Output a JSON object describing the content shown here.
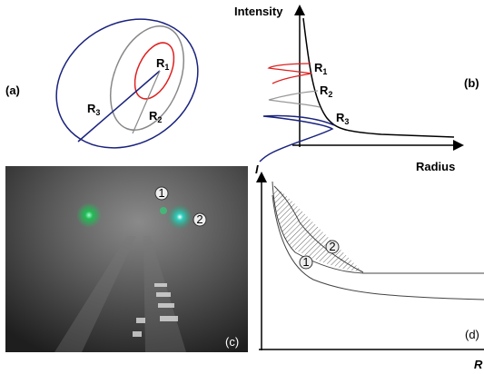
{
  "panel_a": {
    "label": "(a)",
    "regions": [
      {
        "base": "R",
        "sub": "1"
      },
      {
        "base": "R",
        "sub": "2"
      },
      {
        "base": "R",
        "sub": "3"
      }
    ]
  },
  "panel_b": {
    "label": "(b)",
    "y_axis": "Intensity",
    "x_axis": "Radius",
    "regions": [
      {
        "base": "R",
        "sub": "1"
      },
      {
        "base": "R",
        "sub": "2"
      },
      {
        "base": "R",
        "sub": "3"
      }
    ]
  },
  "panel_c": {
    "label": "(c)",
    "markers": [
      "1",
      "2"
    ]
  },
  "panel_d": {
    "label": "(d)",
    "y_axis": "I",
    "x_axis": "R",
    "markers": [
      "1",
      "2"
    ]
  }
}
